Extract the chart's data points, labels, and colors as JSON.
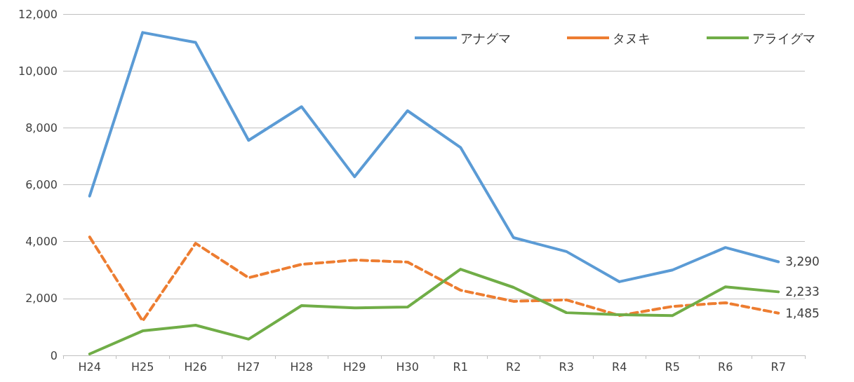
{
  "chart_data": {
    "type": "line",
    "categories": [
      "H24",
      "H25",
      "H26",
      "H27",
      "H28",
      "H29",
      "H30",
      "R1",
      "R2",
      "R3",
      "R4",
      "R5",
      "R6",
      "R7"
    ],
    "series": [
      {
        "name": "アナグマ",
        "color": "#5b9bd5",
        "line_style": "solid",
        "values": [
          5600,
          11350,
          11000,
          7560,
          8740,
          6280,
          8600,
          7310,
          4140,
          3650,
          2590,
          3000,
          3790,
          3290
        ],
        "value_labels": [
          null,
          null,
          null,
          null,
          null,
          null,
          null,
          null,
          null,
          null,
          null,
          null,
          null,
          "3,290"
        ]
      },
      {
        "name": "タヌキ",
        "color": "#ed7d31",
        "line_style": "dashed",
        "values": [
          4160,
          1210,
          3940,
          2730,
          3200,
          3350,
          3280,
          2290,
          1900,
          1950,
          1400,
          1720,
          1850,
          1485
        ],
        "value_labels": [
          null,
          null,
          null,
          null,
          null,
          null,
          null,
          null,
          null,
          null,
          null,
          null,
          null,
          "1,485"
        ]
      },
      {
        "name": "アライグマ",
        "color": "#70ad47",
        "line_style": "solid",
        "values": [
          50,
          860,
          1060,
          570,
          1750,
          1670,
          1700,
          3030,
          2390,
          1500,
          1430,
          1400,
          2410,
          2233
        ],
        "value_labels": [
          null,
          null,
          null,
          null,
          null,
          null,
          null,
          null,
          null,
          null,
          null,
          null,
          null,
          "2,233"
        ]
      }
    ],
    "ylim": [
      0,
      12000
    ],
    "yticks": [
      0,
      {
        "value": 2000,
        "label": "2,000"
      },
      {
        "value": 4000,
        "label": "4,000"
      },
      {
        "value": 6000,
        "label": "6,000"
      },
      {
        "value": 8000,
        "label": "8,000"
      },
      {
        "value": 10000,
        "label": "10,000"
      },
      {
        "value": 12000,
        "label": "12,000"
      }
    ],
    "grid": "y",
    "legend": "top right",
    "marker": "none"
  }
}
